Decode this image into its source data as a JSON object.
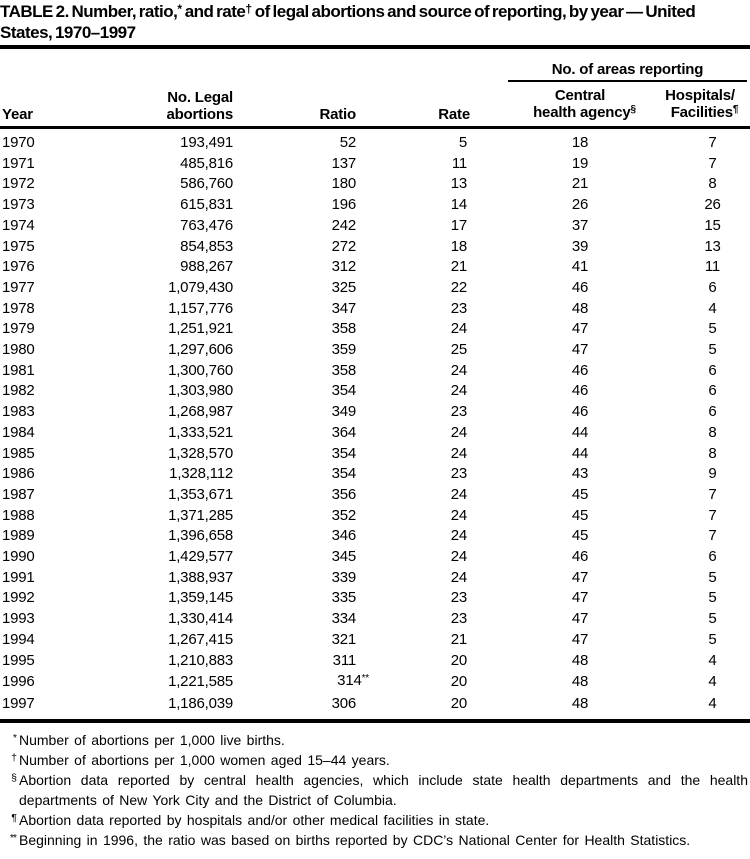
{
  "colors": {
    "text": "#000000",
    "background": "#ffffff",
    "rule": "#000000"
  },
  "title": {
    "part1": "TABLE 2. Number, ratio,",
    "sup1": "*",
    "part2": " and rate",
    "sup2": "†",
    "part3": " of legal abortions and source of reporting, by year — United States, 1970–1997"
  },
  "table": {
    "columns": {
      "year": "Year",
      "abortions_line1": "No. Legal",
      "abortions_line2": "abortions",
      "ratio": "Ratio",
      "rate": "Rate",
      "spanner": "No. of areas reporting",
      "central_line1": "Central",
      "central_line2": "health agency",
      "central_sup": "§",
      "hospitals_line1": "Hospitals/",
      "hospitals_line2": "Facilities",
      "hospitals_sup": "¶"
    },
    "rows": [
      {
        "year": "1970",
        "abortions": "193,491",
        "ratio": "52",
        "rate": "5",
        "central": "18",
        "hospitals": "7"
      },
      {
        "year": "1971",
        "abortions": "485,816",
        "ratio": "137",
        "rate": "11",
        "central": "19",
        "hospitals": "7"
      },
      {
        "year": "1972",
        "abortions": "586,760",
        "ratio": "180",
        "rate": "13",
        "central": "21",
        "hospitals": "8"
      },
      {
        "year": "1973",
        "abortions": "615,831",
        "ratio": "196",
        "rate": "14",
        "central": "26",
        "hospitals": "26"
      },
      {
        "year": "1974",
        "abortions": "763,476",
        "ratio": "242",
        "rate": "17",
        "central": "37",
        "hospitals": "15"
      },
      {
        "year": "1975",
        "abortions": "854,853",
        "ratio": "272",
        "rate": "18",
        "central": "39",
        "hospitals": "13"
      },
      {
        "year": "1976",
        "abortions": "988,267",
        "ratio": "312",
        "rate": "21",
        "central": "41",
        "hospitals": "11"
      },
      {
        "year": "1977",
        "abortions": "1,079,430",
        "ratio": "325",
        "rate": "22",
        "central": "46",
        "hospitals": "6"
      },
      {
        "year": "1978",
        "abortions": "1,157,776",
        "ratio": "347",
        "rate": "23",
        "central": "48",
        "hospitals": "4"
      },
      {
        "year": "1979",
        "abortions": "1,251,921",
        "ratio": "358",
        "rate": "24",
        "central": "47",
        "hospitals": "5"
      },
      {
        "year": "1980",
        "abortions": "1,297,606",
        "ratio": "359",
        "rate": "25",
        "central": "47",
        "hospitals": "5"
      },
      {
        "year": "1981",
        "abortions": "1,300,760",
        "ratio": "358",
        "rate": "24",
        "central": "46",
        "hospitals": "6"
      },
      {
        "year": "1982",
        "abortions": "1,303,980",
        "ratio": "354",
        "rate": "24",
        "central": "46",
        "hospitals": "6"
      },
      {
        "year": "1983",
        "abortions": "1,268,987",
        "ratio": "349",
        "rate": "23",
        "central": "46",
        "hospitals": "6"
      },
      {
        "year": "1984",
        "abortions": "1,333,521",
        "ratio": "364",
        "rate": "24",
        "central": "44",
        "hospitals": "8"
      },
      {
        "year": "1985",
        "abortions": "1,328,570",
        "ratio": "354",
        "rate": "24",
        "central": "44",
        "hospitals": "8"
      },
      {
        "year": "1986",
        "abortions": "1,328,112",
        "ratio": "354",
        "rate": "23",
        "central": "43",
        "hospitals": "9"
      },
      {
        "year": "1987",
        "abortions": "1,353,671",
        "ratio": "356",
        "rate": "24",
        "central": "45",
        "hospitals": "7"
      },
      {
        "year": "1988",
        "abortions": "1,371,285",
        "ratio": "352",
        "rate": "24",
        "central": "45",
        "hospitals": "7"
      },
      {
        "year": "1989",
        "abortions": "1,396,658",
        "ratio": "346",
        "rate": "24",
        "central": "45",
        "hospitals": "7"
      },
      {
        "year": "1990",
        "abortions": "1,429,577",
        "ratio": "345",
        "rate": "24",
        "central": "46",
        "hospitals": "6"
      },
      {
        "year": "1991",
        "abortions": "1,388,937",
        "ratio": "339",
        "rate": "24",
        "central": "47",
        "hospitals": "5"
      },
      {
        "year": "1992",
        "abortions": "1,359,145",
        "ratio": "335",
        "rate": "23",
        "central": "47",
        "hospitals": "5"
      },
      {
        "year": "1993",
        "abortions": "1,330,414",
        "ratio": "334",
        "rate": "23",
        "central": "47",
        "hospitals": "5"
      },
      {
        "year": "1994",
        "abortions": "1,267,415",
        "ratio": "321",
        "rate": "21",
        "central": "47",
        "hospitals": "5"
      },
      {
        "year": "1995",
        "abortions": "1,210,883",
        "ratio": "311",
        "rate": "20",
        "central": "48",
        "hospitals": "4"
      },
      {
        "year": "1996",
        "abortions": "1,221,585",
        "ratio": "314",
        "ratio_sup": "**",
        "rate": "20",
        "central": "48",
        "hospitals": "4"
      },
      {
        "year": "1997",
        "abortions": "1,186,039",
        "ratio": "306",
        "rate": "20",
        "central": "48",
        "hospitals": "4"
      }
    ]
  },
  "footnotes": [
    {
      "marker": "*",
      "text": "Number of abortions per 1,000 live births."
    },
    {
      "marker": "†",
      "text": "Number of abortions per 1,000 women aged 15–44 years."
    },
    {
      "marker": "§",
      "text": "Abortion data reported by central health agencies, which include state health departments and the health departments of New York City and the District of Columbia."
    },
    {
      "marker": "¶",
      "text": "Abortion data reported by hospitals and/or other medical facilities in state."
    },
    {
      "marker": "**",
      "text": "Beginning in 1996, the ratio was based on births reported by CDC’s National Center for Health Statistics."
    }
  ]
}
